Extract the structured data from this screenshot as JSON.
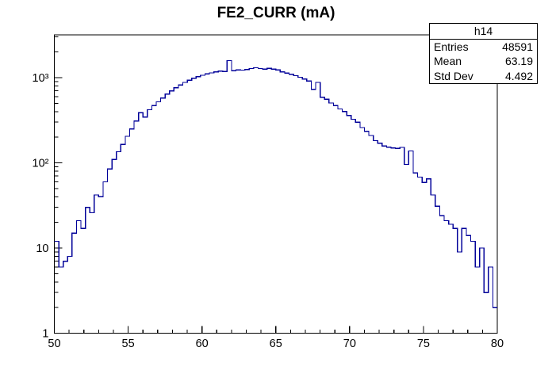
{
  "stats": {
    "title": "h14",
    "rows": [
      {
        "label": "Entries",
        "value": "48591"
      },
      {
        "label": "Mean",
        "value": "63.19"
      },
      {
        "label": "Std Dev",
        "value": "4.492"
      }
    ]
  },
  "chart_data": {
    "type": "bar",
    "subtype": "step-histogram",
    "title": "FE2_CURR (mA)",
    "xlabel": "",
    "ylabel": "",
    "y_scale": "log",
    "xlim": [
      50,
      80
    ],
    "ylim": [
      1,
      3180
    ],
    "x_major_ticks": [
      50,
      55,
      60,
      65,
      70,
      75,
      80
    ],
    "x_major_tick_labels": [
      "50",
      "55",
      "60",
      "65",
      "70",
      "75",
      "80"
    ],
    "x_minor_tick_step": 1,
    "y_major_ticks": [
      1,
      10,
      100,
      1000
    ],
    "y_major_tick_labels": [
      "1",
      "10",
      "10²",
      "10³"
    ],
    "grid": "off",
    "legend": "none",
    "line_color": "#000099",
    "frame_color": "#000000",
    "bins": {
      "start": 50,
      "width": 0.3,
      "count": 100
    },
    "values": [
      12,
      6,
      7,
      8,
      15,
      21,
      17,
      30,
      26,
      42,
      40,
      60,
      85,
      110,
      135,
      165,
      205,
      250,
      310,
      388,
      345,
      420,
      470,
      520,
      575,
      640,
      700,
      760,
      820,
      880,
      935,
      985,
      1030,
      1070,
      1105,
      1140,
      1170,
      1195,
      1180,
      1590,
      1205,
      1230,
      1225,
      1250,
      1280,
      1310,
      1280,
      1260,
      1290,
      1260,
      1230,
      1170,
      1130,
      1095,
      1055,
      1010,
      965,
      915,
      730,
      880,
      590,
      560,
      505,
      470,
      430,
      400,
      360,
      325,
      300,
      260,
      235,
      210,
      182,
      170,
      158,
      153,
      150,
      148,
      152,
      96,
      138,
      76,
      68,
      59,
      65,
      42,
      31,
      24,
      21,
      19,
      17,
      9,
      17,
      14,
      12,
      6,
      10,
      3,
      6,
      2
    ]
  }
}
